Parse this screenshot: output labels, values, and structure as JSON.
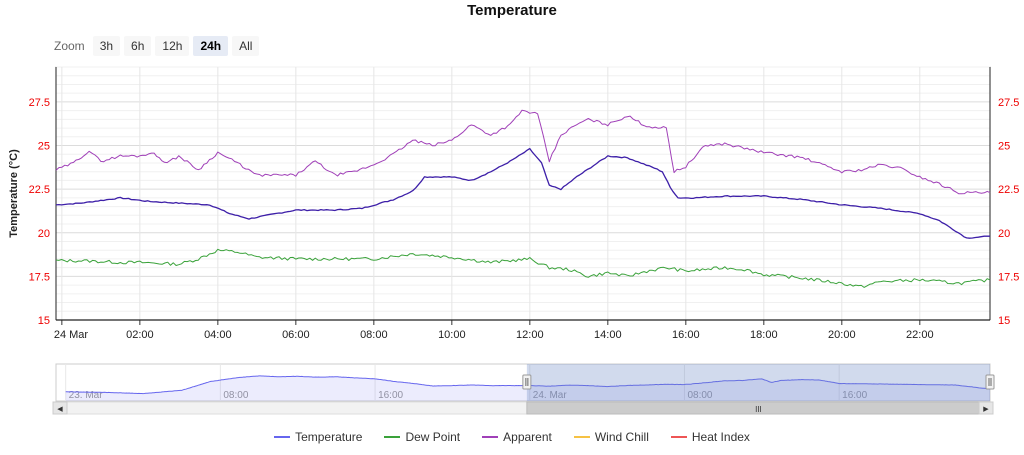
{
  "chart_data": {
    "type": "line",
    "title": "Temperature",
    "ylabel": "Temperature (°C)",
    "ylim": [
      15,
      29.5
    ],
    "yticks": [
      "15",
      "17.5",
      "20",
      "22.5",
      "25",
      "27.5"
    ],
    "xlim": [
      -0.15,
      23.8
    ],
    "xticks": [
      {
        "v": 0,
        "label": "24 Mar"
      },
      {
        "v": 2,
        "label": "02:00"
      },
      {
        "v": 4,
        "label": "04:00"
      },
      {
        "v": 6,
        "label": "06:00"
      },
      {
        "v": 8,
        "label": "08:00"
      },
      {
        "v": 10,
        "label": "10:00"
      },
      {
        "v": 12,
        "label": "12:00"
      },
      {
        "v": 14,
        "label": "14:00"
      },
      {
        "v": 16,
        "label": "16:00"
      },
      {
        "v": 18,
        "label": "18:00"
      },
      {
        "v": 20,
        "label": "20:00"
      },
      {
        "v": 22,
        "label": "22:00"
      }
    ],
    "colors": {
      "temperature": "#6666ee",
      "temperature_line": "#3d1fa8",
      "dewpoint": "#3aa23a",
      "apparent": "#a040b8",
      "windchill": "#f6c244",
      "heatindex": "#ee5555",
      "axis_red": "#ee0000"
    },
    "series": [
      {
        "name": "Temperature",
        "key": "temperature",
        "x": [
          -0.15,
          0.5,
          1.5,
          2.2,
          3,
          3.8,
          4.3,
          4.8,
          5.5,
          6,
          7,
          7.7,
          8.5,
          9,
          9.3,
          10,
          10.5,
          11,
          11.5,
          12,
          12.3,
          12.5,
          12.8,
          13.2,
          14,
          14.5,
          15.2,
          15.4,
          15.6,
          15.8,
          16.2,
          17,
          18,
          19,
          20,
          21,
          22,
          22.5,
          23.2,
          23.8
        ],
        "y": [
          21.6,
          21.7,
          22,
          21.8,
          21.7,
          21.6,
          21.1,
          20.8,
          21.1,
          21.3,
          21.3,
          21.4,
          21.9,
          22.4,
          23.2,
          23.2,
          23.0,
          23.5,
          24.1,
          24.8,
          24.0,
          22.7,
          22.5,
          23.2,
          24.4,
          24.3,
          23.7,
          23.5,
          22.6,
          22.0,
          22.0,
          22.1,
          22.1,
          21.9,
          21.6,
          21.4,
          21.1,
          20.7,
          19.7,
          19.8
        ]
      },
      {
        "name": "Dew Point",
        "key": "dewpoint",
        "x": [
          -0.15,
          0.5,
          1.5,
          2,
          3,
          3.5,
          4,
          4.5,
          5,
          6,
          7,
          8,
          9,
          10,
          11,
          12,
          12.5,
          13,
          13.5,
          14,
          14.5,
          15,
          15.5,
          16,
          17,
          17.5,
          18,
          19,
          20,
          20.5,
          21,
          22,
          23,
          23.8
        ],
        "y": [
          18.4,
          18.4,
          18.3,
          18.3,
          18.2,
          18.5,
          19.0,
          18.9,
          18.6,
          18.5,
          18.5,
          18.5,
          18.8,
          18.6,
          18.3,
          18.5,
          18.0,
          17.9,
          17.5,
          17.7,
          17.5,
          17.8,
          18.0,
          17.8,
          18.0,
          17.9,
          17.6,
          17.4,
          17.1,
          16.9,
          17.2,
          17.3,
          17.1,
          17.3
        ]
      },
      {
        "name": "Apparent",
        "key": "apparent",
        "x": [
          -0.15,
          0.3,
          0.7,
          1,
          1.5,
          2,
          2.3,
          2.7,
          3,
          3.5,
          4,
          4.5,
          5,
          5.5,
          6,
          6.5,
          7,
          7.5,
          8,
          8.5,
          9,
          9.5,
          10,
          10.5,
          11,
          11.5,
          11.8,
          12.2,
          12.5,
          12.8,
          13.2,
          13.5,
          14,
          14.5,
          15,
          15.5,
          15.7,
          16,
          16.5,
          17,
          18,
          19,
          20,
          20.5,
          21,
          21.5,
          22,
          22.5,
          23,
          23.8
        ],
        "y": [
          23.6,
          24.0,
          24.7,
          24.1,
          24.4,
          24.4,
          24.6,
          24.0,
          24.4,
          23.6,
          24.6,
          24.0,
          23.3,
          23.3,
          23.3,
          24.1,
          23.3,
          23.5,
          23.9,
          24.5,
          25.3,
          25.0,
          25.3,
          26.2,
          25.6,
          26.2,
          27.0,
          26.8,
          24.1,
          25.6,
          26.2,
          26.5,
          26.2,
          26.7,
          26.1,
          26.0,
          23.5,
          23.8,
          25.0,
          25.1,
          24.6,
          24.3,
          23.5,
          23.6,
          23.9,
          23.7,
          23.2,
          22.8,
          22.3,
          22.3
        ]
      },
      {
        "name": "Wind Chill",
        "key": "windchill",
        "x": [],
        "y": []
      },
      {
        "name": "Heat Index",
        "key": "heatindex",
        "x": [],
        "y": []
      }
    ],
    "navigator": {
      "tick_labels": [
        {
          "v": -24,
          "label": "23. Mar"
        },
        {
          "v": -16,
          "label": "08:00"
        },
        {
          "v": -8,
          "label": "16:00"
        },
        {
          "v": 0,
          "label": "24. Mar"
        },
        {
          "v": 8,
          "label": "08:00"
        },
        {
          "v": 16,
          "label": "16:00"
        }
      ],
      "xlim": [
        -24.5,
        23.8
      ],
      "selection": [
        -0.15,
        23.8
      ],
      "ylim": [
        10,
        28
      ],
      "x": [
        -24,
        -22,
        -20,
        -18,
        -16.5,
        -15,
        -14,
        -13,
        -12,
        -11,
        -10,
        -9,
        -8,
        -7,
        -6,
        -5,
        -4,
        -3,
        -2,
        -1,
        0,
        1,
        2,
        3,
        4,
        5,
        6,
        7,
        8,
        9,
        10,
        11,
        12,
        12.5,
        13,
        14,
        15,
        16,
        17,
        18,
        20,
        22,
        23.8
      ],
      "y": [
        14.5,
        14.2,
        13.6,
        15.2,
        19.5,
        21.5,
        22.2,
        21.8,
        22.0,
        21.6,
        21.8,
        21.2,
        20.8,
        19.5,
        18.5,
        17.3,
        17.5,
        17.8,
        17.5,
        17.5,
        17.5,
        17.2,
        17.7,
        17.5,
        17.0,
        17.5,
        17.8,
        18.1,
        18.0,
        18.8,
        19.8,
        20.0,
        20.8,
        19.0,
        20.0,
        20.4,
        20.2,
        18.5,
        18.4,
        18.3,
        18.0,
        17.8,
        15.8
      ]
    }
  },
  "zoom": {
    "label": "Zoom",
    "buttons": [
      "3h",
      "6h",
      "12h",
      "24h",
      "All"
    ],
    "active": "24h"
  },
  "legend": [
    {
      "key": "temperature",
      "label": "Temperature",
      "color": "#6666ee"
    },
    {
      "key": "dewpoint",
      "label": "Dew Point",
      "color": "#3aa23a"
    },
    {
      "key": "apparent",
      "label": "Apparent",
      "color": "#a040b8"
    },
    {
      "key": "windchill",
      "label": "Wind Chill",
      "color": "#f6c244"
    },
    {
      "key": "heatindex",
      "label": "Heat Index",
      "color": "#ee5555"
    }
  ],
  "scrollbar": {
    "grip_glyph": "III",
    "left_arrow": "◀",
    "right_arrow": "▶"
  }
}
